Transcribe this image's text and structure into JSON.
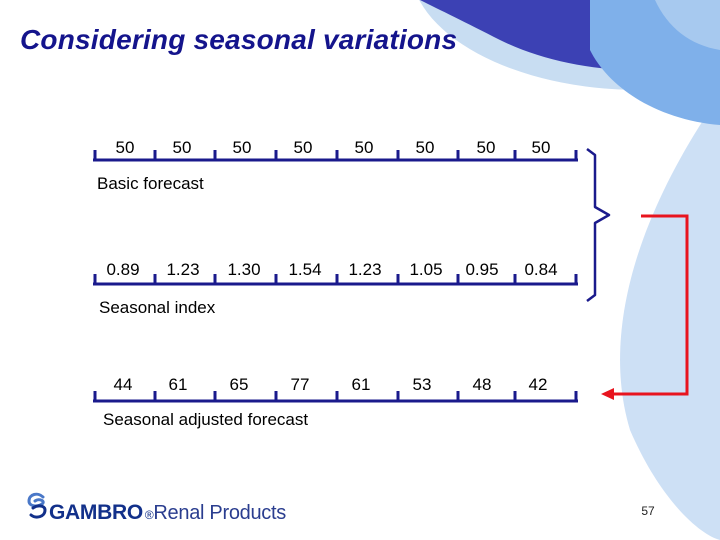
{
  "slide": {
    "title": "Considering seasonal variations",
    "page_number": "57"
  },
  "rows": [
    {
      "label": "Basic forecast",
      "values": [
        "50",
        "50",
        "50",
        "50",
        "50",
        "50",
        "50",
        "50"
      ]
    },
    {
      "label": "Seasonal index",
      "values": [
        "0.89",
        "1.23",
        "1.30",
        "1.54",
        "1.23",
        "1.05",
        "0.95",
        "0.84"
      ]
    },
    {
      "label": "Seasonal adjusted forecast",
      "values": [
        "44",
        "61",
        "65",
        "77",
        "61",
        "53",
        "48",
        "42"
      ]
    }
  ],
  "logo": {
    "brand": "GAMBRO",
    "tail": "Renal Products"
  },
  "colors": {
    "title": "#14148c",
    "timeline": "#1a1a8c",
    "arrow": "#e8141e",
    "deco_dark": "#3c41b4",
    "deco_light": "#cde0f5"
  }
}
